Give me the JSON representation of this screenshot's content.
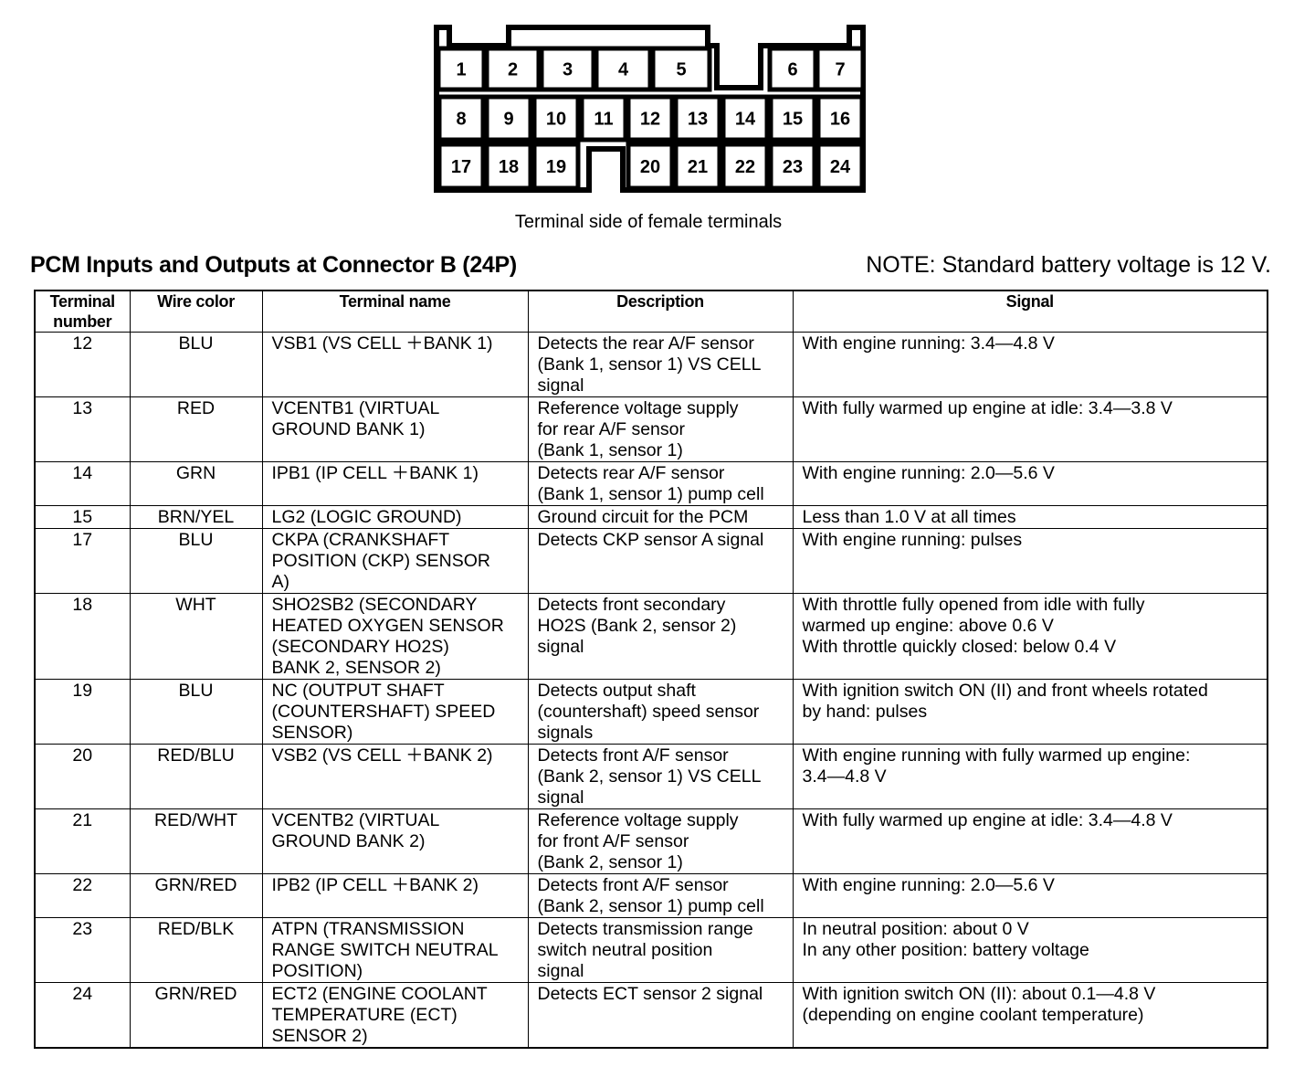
{
  "connector": {
    "pins": [
      "1",
      "2",
      "3",
      "4",
      "5",
      "6",
      "7",
      "8",
      "9",
      "10",
      "11",
      "12",
      "13",
      "14",
      "15",
      "16",
      "17",
      "18",
      "19",
      "20",
      "21",
      "22",
      "23",
      "24"
    ],
    "caption": "Terminal side of female terminals"
  },
  "title": "PCM Inputs and Outputs at Connector B (24P)",
  "note": "NOTE: Standard battery voltage is 12 V.",
  "table": {
    "headers": [
      "Terminal\nnumber",
      "Wire color",
      "Terminal name",
      "Description",
      "Signal"
    ],
    "rows": [
      {
        "num": "12",
        "color": "BLU",
        "name": "VSB1 (VS CELL ＋BANK 1)",
        "desc": "Detects the rear A/F sensor\n(Bank 1, sensor 1) VS CELL\nsignal",
        "signal": "With engine running: 3.4—4.8 V"
      },
      {
        "num": "13",
        "color": "RED",
        "name": "VCENTB1 (VIRTUAL\nGROUND BANK 1)",
        "desc": "Reference voltage supply\nfor rear A/F sensor\n(Bank 1, sensor 1)",
        "signal": "With fully warmed up engine at idle: 3.4—3.8 V"
      },
      {
        "num": "14",
        "color": "GRN",
        "name": "IPB1 (IP CELL ＋BANK 1)",
        "desc": "Detects rear A/F sensor\n(Bank 1, sensor 1) pump cell",
        "signal": "With engine running: 2.0—5.6 V"
      },
      {
        "num": "15",
        "color": "BRN/YEL",
        "name": "LG2 (LOGIC GROUND)",
        "desc": "Ground circuit for the PCM",
        "signal": "Less than 1.0 V at all times"
      },
      {
        "num": "17",
        "color": "BLU",
        "name": "CKPA (CRANKSHAFT\nPOSITION (CKP) SENSOR\nA)",
        "desc": "Detects CKP sensor A signal",
        "signal": "With engine running: pulses"
      },
      {
        "num": "18",
        "color": "WHT",
        "name": "SHO2SB2 (SECONDARY\nHEATED OXYGEN SENSOR\n(SECONDARY HO2S)\nBANK 2, SENSOR 2)",
        "desc": "Detects front secondary\nHO2S (Bank 2, sensor 2)\nsignal",
        "signal": "With throttle fully opened from idle with fully\nwarmed up engine: above 0.6 V\nWith throttle quickly closed: below 0.4 V"
      },
      {
        "num": "19",
        "color": "BLU",
        "name": "NC (OUTPUT SHAFT\n(COUNTERSHAFT) SPEED\nSENSOR)",
        "desc": "Detects output shaft\n(countershaft) speed sensor\nsignals",
        "signal": "With ignition switch ON (II) and front wheels rotated\nby hand: pulses"
      },
      {
        "num": "20",
        "color": "RED/BLU",
        "name": "VSB2 (VS CELL ＋BANK 2)",
        "desc": "Detects front A/F sensor\n(Bank 2, sensor 1) VS CELL\nsignal",
        "signal": "With engine running with fully warmed up engine:\n3.4—4.8 V"
      },
      {
        "num": "21",
        "color": "RED/WHT",
        "name": "VCENTB2 (VIRTUAL\nGROUND BANK 2)",
        "desc": "Reference voltage supply\nfor front A/F sensor\n(Bank 2, sensor 1)",
        "signal": "With fully warmed up engine at idle: 3.4—4.8 V"
      },
      {
        "num": "22",
        "color": "GRN/RED",
        "name": "IPB2 (IP CELL ＋BANK 2)",
        "desc": "Detects front A/F sensor\n(Bank 2, sensor 1) pump cell",
        "signal": "With engine running: 2.0—5.6 V"
      },
      {
        "num": "23",
        "color": "RED/BLK",
        "name": "ATPN (TRANSMISSION\nRANGE SWITCH NEUTRAL\nPOSITION)",
        "desc": "Detects transmission range\nswitch neutral position\nsignal",
        "signal": "In neutral position: about 0 V\nIn any other position: battery voltage"
      },
      {
        "num": "24",
        "color": "GRN/RED",
        "name": "ECT2 (ENGINE COOLANT\nTEMPERATURE (ECT)\nSENSOR 2)",
        "desc": "Detects ECT sensor 2 signal",
        "signal": "With ignition switch ON (II): about 0.1—4.8 V\n(depending on engine coolant temperature)"
      }
    ]
  }
}
